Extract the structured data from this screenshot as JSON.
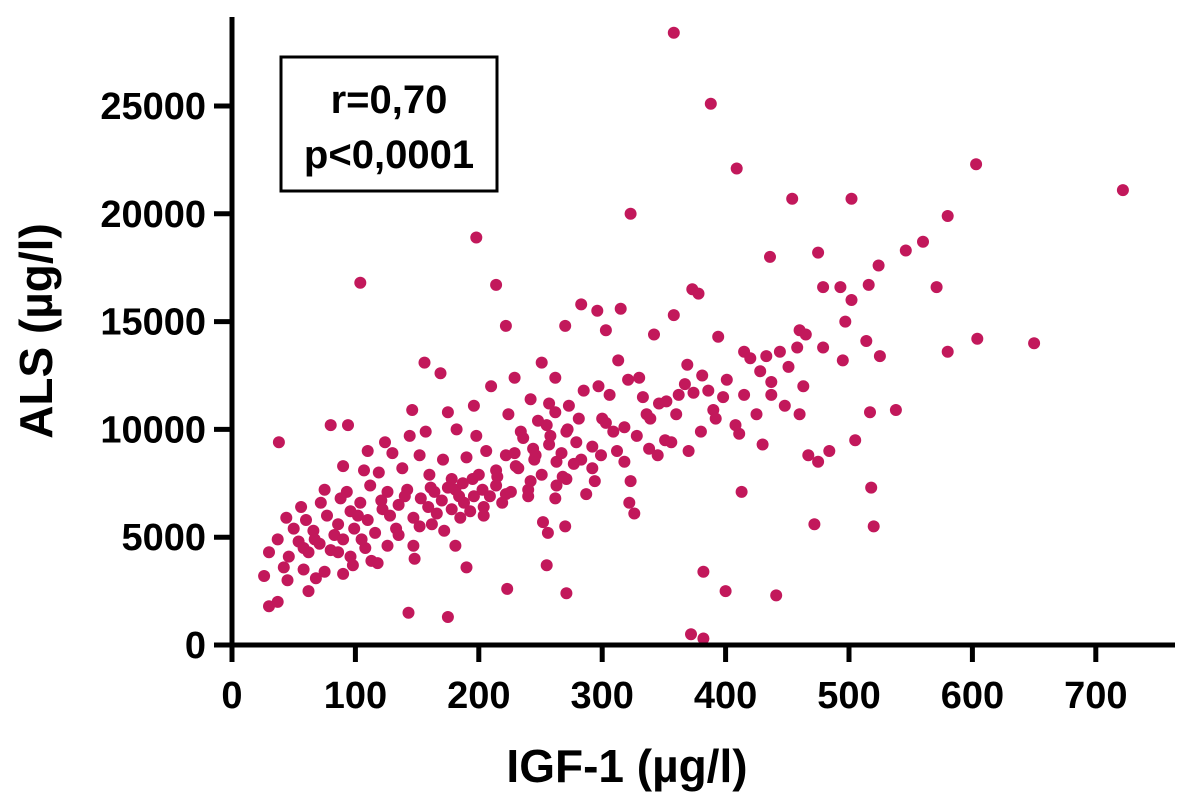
{
  "chart_data": {
    "type": "scatter",
    "xlabel": "IGF-1 (µg/l)",
    "ylabel": "ALS (µg/l)",
    "xlim": [
      0,
      760
    ],
    "ylim": [
      0,
      28500
    ],
    "x_ticks": [
      0,
      100,
      200,
      300,
      400,
      500,
      600,
      700
    ],
    "y_ticks": [
      0,
      5000,
      10000,
      15000,
      20000,
      25000
    ],
    "x_tick_labels": [
      "0",
      "100",
      "200",
      "300",
      "400",
      "500",
      "600",
      "700"
    ],
    "y_tick_labels": [
      "0",
      "5000",
      "10000",
      "15000",
      "20000",
      "25000"
    ],
    "annotations": [
      "r=0,70",
      "p<0,0001"
    ],
    "marker_color": "#C2185B",
    "grid": false,
    "points": [
      [
        358,
        28400
      ],
      [
        388,
        25100
      ],
      [
        603,
        22300
      ],
      [
        409,
        22100
      ],
      [
        722,
        21100
      ],
      [
        454,
        20700
      ],
      [
        502,
        20700
      ],
      [
        323,
        20000
      ],
      [
        580,
        19900
      ],
      [
        198,
        18900
      ],
      [
        560,
        18700
      ],
      [
        546,
        18300
      ],
      [
        436,
        18000
      ],
      [
        475,
        18200
      ],
      [
        524,
        17600
      ],
      [
        104,
        16800
      ],
      [
        214,
        16700
      ],
      [
        571,
        16600
      ],
      [
        493,
        16600
      ],
      [
        373,
        16500
      ],
      [
        502,
        16000
      ],
      [
        516,
        16700
      ],
      [
        479,
        16600
      ],
      [
        283,
        15800
      ],
      [
        315,
        15600
      ],
      [
        378,
        16300
      ],
      [
        296,
        15500
      ],
      [
        358,
        15300
      ],
      [
        222,
        14800
      ],
      [
        270,
        14800
      ],
      [
        303,
        14600
      ],
      [
        342,
        14400
      ],
      [
        394,
        14300
      ],
      [
        460,
        14600
      ],
      [
        465,
        14400
      ],
      [
        497,
        15000
      ],
      [
        514,
        14100
      ],
      [
        604,
        14200
      ],
      [
        650,
        14000
      ],
      [
        580,
        13600
      ],
      [
        525,
        13400
      ],
      [
        495,
        13200
      ],
      [
        156,
        13100
      ],
      [
        169,
        12600
      ],
      [
        251,
        13100
      ],
      [
        313,
        13200
      ],
      [
        369,
        13000
      ],
      [
        415,
        13600
      ],
      [
        420,
        13300
      ],
      [
        444,
        13600
      ],
      [
        479,
        13800
      ],
      [
        458,
        13800
      ],
      [
        433,
        13400
      ],
      [
        210,
        12000
      ],
      [
        229,
        12400
      ],
      [
        262,
        12400
      ],
      [
        321,
        12300
      ],
      [
        330,
        12400
      ],
      [
        381,
        12500
      ],
      [
        437,
        12200
      ],
      [
        386,
        11800
      ],
      [
        362,
        11600
      ],
      [
        306,
        11600
      ],
      [
        257,
        11200
      ],
      [
        242,
        11400
      ],
      [
        196,
        11100
      ],
      [
        146,
        10900
      ],
      [
        175,
        10800
      ],
      [
        224,
        10700
      ],
      [
        281,
        10500
      ],
      [
        300,
        10500
      ],
      [
        339,
        10500
      ],
      [
        360,
        10700
      ],
      [
        390,
        10900
      ],
      [
        415,
        11600
      ],
      [
        448,
        11100
      ],
      [
        538,
        10900
      ],
      [
        517,
        10800
      ],
      [
        460,
        10700
      ],
      [
        80,
        10200
      ],
      [
        94,
        10200
      ],
      [
        38,
        9400
      ],
      [
        124,
        9400
      ],
      [
        144,
        9700
      ],
      [
        157,
        9900
      ],
      [
        182,
        10000
      ],
      [
        198,
        9700
      ],
      [
        234,
        9900
      ],
      [
        255,
        10200
      ],
      [
        272,
        10000
      ],
      [
        309,
        9900
      ],
      [
        328,
        9700
      ],
      [
        351,
        9500
      ],
      [
        380,
        9900
      ],
      [
        411,
        9800
      ],
      [
        430,
        9300
      ],
      [
        467,
        8800
      ],
      [
        475,
        8500
      ],
      [
        484,
        9000
      ],
      [
        505,
        9500
      ],
      [
        110,
        9000
      ],
      [
        130,
        8900
      ],
      [
        152,
        8800
      ],
      [
        171,
        8600
      ],
      [
        190,
        8700
      ],
      [
        206,
        9000
      ],
      [
        222,
        8800
      ],
      [
        245,
        8600
      ],
      [
        263,
        8500
      ],
      [
        283,
        8600
      ],
      [
        299,
        8800
      ],
      [
        318,
        8500
      ],
      [
        345,
        8800
      ],
      [
        370,
        9000
      ],
      [
        90,
        8300
      ],
      [
        107,
        8100
      ],
      [
        119,
        8000
      ],
      [
        138,
        8200
      ],
      [
        160,
        7900
      ],
      [
        178,
        7700
      ],
      [
        195,
        7700
      ],
      [
        215,
        7800
      ],
      [
        232,
        8200
      ],
      [
        251,
        7900
      ],
      [
        271,
        7700
      ],
      [
        294,
        7600
      ],
      [
        323,
        7600
      ],
      [
        75,
        7200
      ],
      [
        93,
        7100
      ],
      [
        112,
        7400
      ],
      [
        126,
        7100
      ],
      [
        142,
        7200
      ],
      [
        161,
        7300
      ],
      [
        181,
        7200
      ],
      [
        203,
        7200
      ],
      [
        222,
        7000
      ],
      [
        240,
        7200
      ],
      [
        263,
        7400
      ],
      [
        287,
        7000
      ],
      [
        413,
        7100
      ],
      [
        518,
        7300
      ],
      [
        56,
        6400
      ],
      [
        72,
        6600
      ],
      [
        88,
        6800
      ],
      [
        104,
        6600
      ],
      [
        121,
        6700
      ],
      [
        135,
        6500
      ],
      [
        153,
        6800
      ],
      [
        170,
        6700
      ],
      [
        188,
        6600
      ],
      [
        204,
        6400
      ],
      [
        219,
        6600
      ],
      [
        240,
        6900
      ],
      [
        262,
        6800
      ],
      [
        322,
        6600
      ],
      [
        326,
        6100
      ],
      [
        44,
        5900
      ],
      [
        60,
        5800
      ],
      [
        77,
        6000
      ],
      [
        96,
        6200
      ],
      [
        110,
        5800
      ],
      [
        128,
        6000
      ],
      [
        147,
        5900
      ],
      [
        166,
        6100
      ],
      [
        185,
        5900
      ],
      [
        204,
        6000
      ],
      [
        252,
        5700
      ],
      [
        270,
        5500
      ],
      [
        50,
        5400
      ],
      [
        66,
        5300
      ],
      [
        83,
        5100
      ],
      [
        99,
        5400
      ],
      [
        116,
        5200
      ],
      [
        133,
        5400
      ],
      [
        152,
        5500
      ],
      [
        172,
        5300
      ],
      [
        256,
        5200
      ],
      [
        472,
        5600
      ],
      [
        520,
        5500
      ],
      [
        37,
        4900
      ],
      [
        54,
        4800
      ],
      [
        71,
        4700
      ],
      [
        90,
        4900
      ],
      [
        108,
        4500
      ],
      [
        126,
        4600
      ],
      [
        147,
        4600
      ],
      [
        181,
        4600
      ],
      [
        30,
        4300
      ],
      [
        46,
        4100
      ],
      [
        62,
        4300
      ],
      [
        80,
        4400
      ],
      [
        96,
        4100
      ],
      [
        113,
        3900
      ],
      [
        42,
        3600
      ],
      [
        58,
        3500
      ],
      [
        75,
        3400
      ],
      [
        98,
        3700
      ],
      [
        118,
        3800
      ],
      [
        148,
        4000
      ],
      [
        190,
        3600
      ],
      [
        255,
        3700
      ],
      [
        26,
        3200
      ],
      [
        45,
        3000
      ],
      [
        68,
        3100
      ],
      [
        90,
        3300
      ],
      [
        62,
        2500
      ],
      [
        223,
        2600
      ],
      [
        271,
        2400
      ],
      [
        382,
        3400
      ],
      [
        400,
        2500
      ],
      [
        441,
        2300
      ],
      [
        30,
        1800
      ],
      [
        37,
        2000
      ],
      [
        143,
        1500
      ],
      [
        175,
        1300
      ],
      [
        372,
        500
      ],
      [
        382,
        300
      ],
      [
        164,
        7100
      ],
      [
        175,
        7300
      ],
      [
        187,
        7500
      ],
      [
        196,
        6900
      ],
      [
        214,
        7400
      ],
      [
        230,
        8300
      ],
      [
        244,
        9100
      ],
      [
        257,
        9300
      ],
      [
        267,
        8900
      ],
      [
        279,
        9400
      ],
      [
        292,
        9200
      ],
      [
        236,
        9600
      ],
      [
        248,
        10400
      ],
      [
        262,
        10800
      ],
      [
        273,
        11100
      ],
      [
        285,
        11800
      ],
      [
        297,
        12000
      ],
      [
        333,
        11500
      ],
      [
        346,
        11200
      ],
      [
        367,
        12100
      ],
      [
        401,
        12300
      ],
      [
        428,
        12700
      ],
      [
        451,
        12900
      ],
      [
        463,
        12000
      ],
      [
        398,
        11500
      ],
      [
        408,
        10200
      ],
      [
        425,
        10700
      ],
      [
        338,
        9100
      ],
      [
        356,
        9400
      ],
      [
        312,
        9000
      ],
      [
        292,
        8200
      ],
      [
        277,
        8400
      ],
      [
        268,
        7800
      ],
      [
        242,
        7600
      ],
      [
        226,
        7100
      ],
      [
        209,
        6900
      ],
      [
        193,
        6200
      ],
      [
        178,
        6300
      ],
      [
        159,
        6400
      ],
      [
        140,
        6900
      ],
      [
        122,
        6300
      ],
      [
        102,
        6000
      ],
      [
        86,
        5600
      ],
      [
        67,
        4900
      ],
      [
        58,
        4500
      ],
      [
        86,
        4300
      ],
      [
        105,
        4900
      ],
      [
        135,
        5100
      ],
      [
        162,
        5600
      ],
      [
        184,
        6900
      ],
      [
        200,
        7900
      ],
      [
        214,
        8100
      ],
      [
        229,
        8900
      ],
      [
        246,
        8800
      ],
      [
        258,
        9700
      ],
      [
        271,
        9900
      ],
      [
        303,
        10300
      ],
      [
        318,
        10100
      ],
      [
        336,
        10700
      ],
      [
        352,
        11300
      ],
      [
        374,
        11700
      ],
      [
        392,
        10500
      ],
      [
        437,
        11600
      ]
    ]
  }
}
